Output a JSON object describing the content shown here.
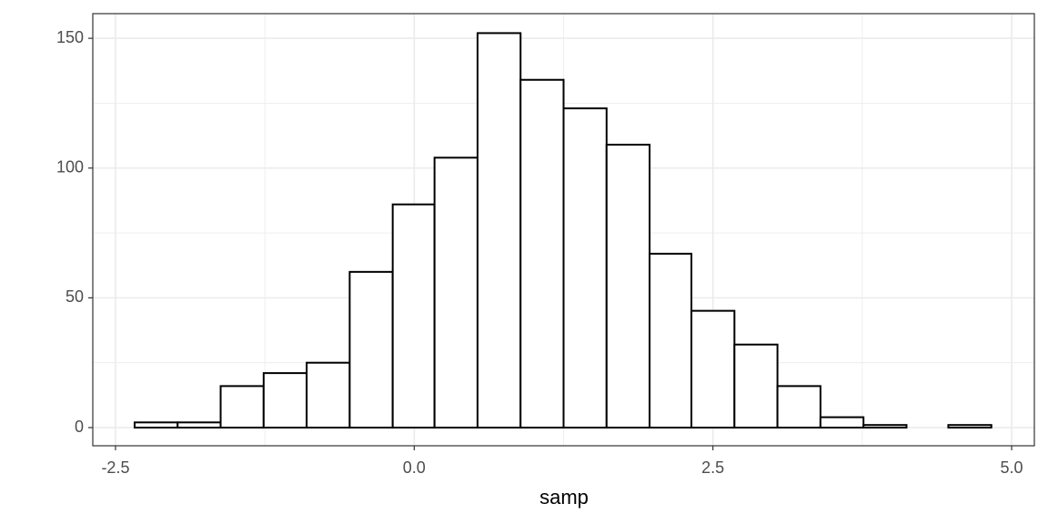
{
  "chart_data": {
    "type": "histogram",
    "xlabel": "samp",
    "bins": [
      -2.34,
      -1.98,
      -1.62,
      -1.26,
      -0.9,
      -0.54,
      -0.18,
      0.17,
      0.53,
      0.89,
      1.25,
      1.61,
      1.97,
      2.32,
      2.68,
      3.04,
      3.4,
      3.76,
      4.12,
      4.47,
      4.83
    ],
    "values": [
      2,
      2,
      16,
      21,
      25,
      60,
      86,
      104,
      152,
      134,
      123,
      109,
      67,
      45,
      32,
      16,
      4,
      1,
      0,
      1
    ],
    "color": "#ffffff",
    "edgecolor": "#000000",
    "xlim": [
      -2.69,
      5.19
    ],
    "ylim": [
      -7,
      159.5
    ],
    "xticks": [
      -2.5,
      {
        "value": 0,
        "label": "0.0"
      },
      2.5,
      {
        "value": 5,
        "label": "5.0"
      }
    ],
    "yticks": [
      0,
      50,
      100,
      150
    ],
    "x_minor_grid": [
      -1.25,
      1.25,
      3.75
    ],
    "y_minor_grid": [
      25,
      75,
      125
    ],
    "grid": true
  }
}
